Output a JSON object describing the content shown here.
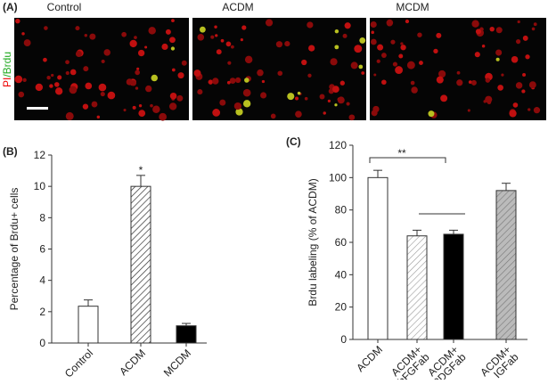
{
  "panel_a": {
    "label": "(A)",
    "titles": [
      "Control",
      "ACDM",
      "MCDM"
    ],
    "ylabel_parts": [
      "PI",
      "/Brdu"
    ]
  },
  "chart_data": [
    {
      "type": "bar",
      "label": "(B)",
      "ylabel": "Percentage of Brdu+ cells",
      "categories": [
        "Control",
        "ACDM",
        "MCDM"
      ],
      "values": [
        2.35,
        10.0,
        1.1
      ],
      "errors": [
        0.4,
        0.7,
        0.15
      ],
      "fills": [
        "white",
        "hatch",
        "black"
      ],
      "ylim": [
        0,
        12
      ],
      "yticks": [
        0,
        2,
        4,
        6,
        8,
        10,
        12
      ],
      "annotation": "*"
    },
    {
      "type": "bar",
      "label": "(C)",
      "ylabel": "Brdu labeling (% of ACDM)",
      "categories": [
        "ACDM",
        "ACDM+ bFGFab",
        "ACDM+ PDGFab",
        "ACDM+ IGFab"
      ],
      "values": [
        100,
        64,
        65,
        92
      ],
      "errors": [
        4.5,
        3.5,
        2.5,
        4.5
      ],
      "fills": [
        "white",
        "light-hatch",
        "black",
        "gray-hatch"
      ],
      "ylim": [
        0,
        120
      ],
      "yticks": [
        0,
        20,
        40,
        60,
        80,
        100,
        120
      ],
      "annotation": "**"
    }
  ]
}
